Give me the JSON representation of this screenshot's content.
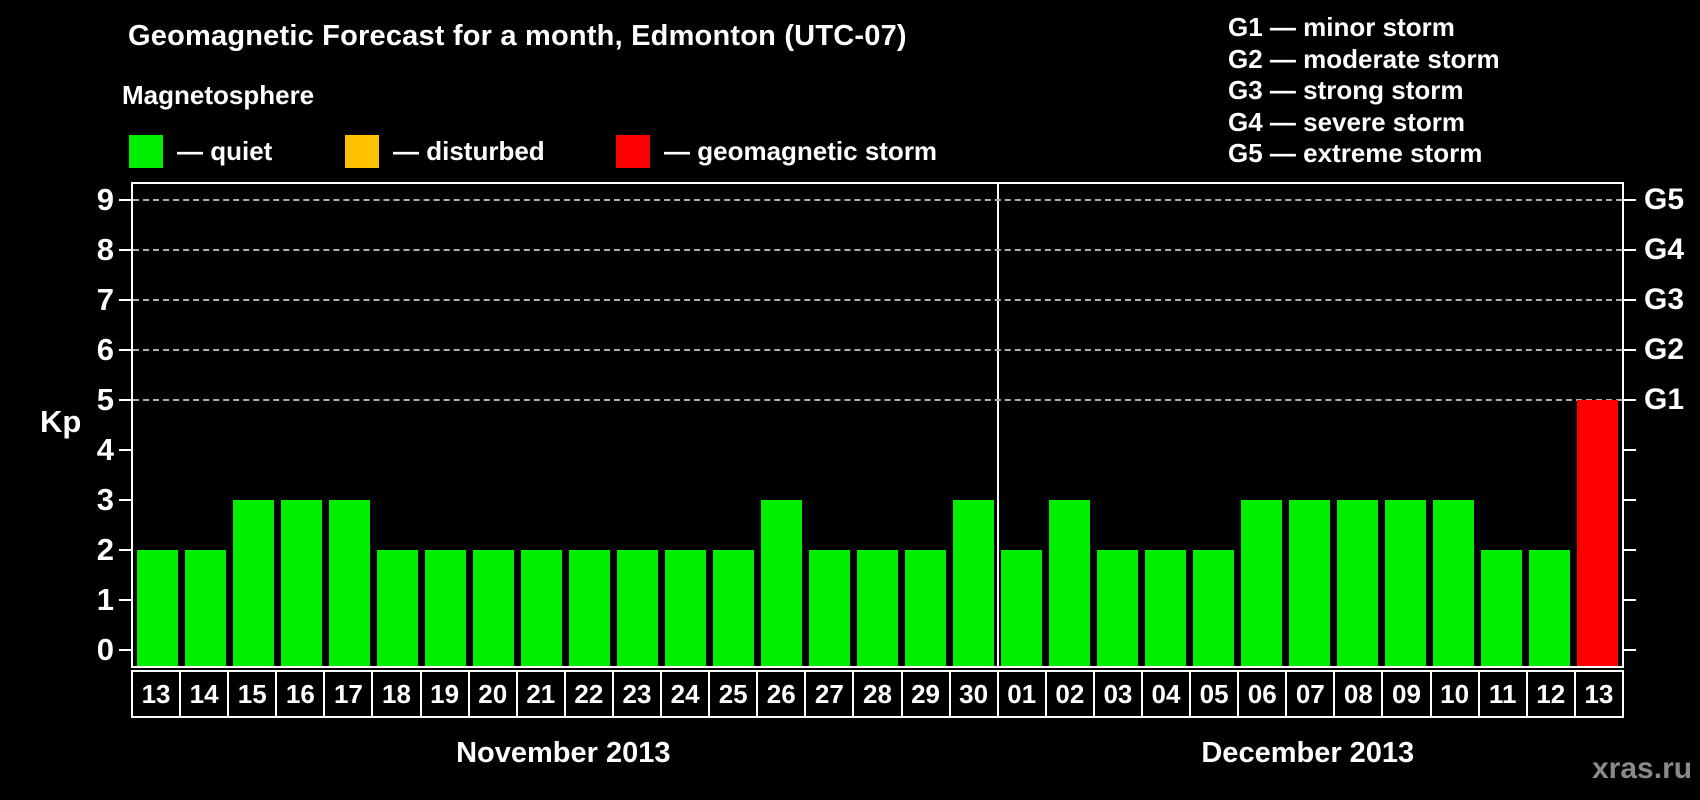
{
  "title": "Geomagnetic Forecast for a month, Edmonton (UTC-07)",
  "subtitle": "Magnetosphere",
  "legend": [
    {
      "name": "quiet",
      "label": "— quiet",
      "color": "#00ee00"
    },
    {
      "name": "disturbed",
      "label": "— disturbed",
      "color": "#ffc000"
    },
    {
      "name": "storm",
      "label": "— geomagnetic storm",
      "color": "#ff0000"
    }
  ],
  "g_legend": [
    "G1 — minor storm",
    "G2 — moderate storm",
    "G3 — strong storm",
    "G4 — severe storm",
    "G5 — extreme storm"
  ],
  "watermark": "xras.ru",
  "chart_data": {
    "type": "bar",
    "title": "Geomagnetic Forecast for a month, Edmonton (UTC-07)",
    "ylabel": "Kp",
    "ylim": [
      0,
      9
    ],
    "yticks": [
      0,
      1,
      2,
      3,
      4,
      5,
      6,
      7,
      8,
      9
    ],
    "grid": "dashed horizontal lines at Kp 5–9 only",
    "right_axis": [
      {
        "kp": 5,
        "label": "G1"
      },
      {
        "kp": 6,
        "label": "G2"
      },
      {
        "kp": 7,
        "label": "G3"
      },
      {
        "kp": 8,
        "label": "G4"
      },
      {
        "kp": 9,
        "label": "G5"
      }
    ],
    "months": [
      {
        "label": "November 2013",
        "days": [
          {
            "day": "13",
            "kp": 2,
            "status": "quiet"
          },
          {
            "day": "14",
            "kp": 2,
            "status": "quiet"
          },
          {
            "day": "15",
            "kp": 3,
            "status": "quiet"
          },
          {
            "day": "16",
            "kp": 3,
            "status": "quiet"
          },
          {
            "day": "17",
            "kp": 3,
            "status": "quiet"
          },
          {
            "day": "18",
            "kp": 2,
            "status": "quiet"
          },
          {
            "day": "19",
            "kp": 2,
            "status": "quiet"
          },
          {
            "day": "20",
            "kp": 2,
            "status": "quiet"
          },
          {
            "day": "21",
            "kp": 2,
            "status": "quiet"
          },
          {
            "day": "22",
            "kp": 2,
            "status": "quiet"
          },
          {
            "day": "23",
            "kp": 2,
            "status": "quiet"
          },
          {
            "day": "24",
            "kp": 2,
            "status": "quiet"
          },
          {
            "day": "25",
            "kp": 2,
            "status": "quiet"
          },
          {
            "day": "26",
            "kp": 3,
            "status": "quiet"
          },
          {
            "day": "27",
            "kp": 2,
            "status": "quiet"
          },
          {
            "day": "28",
            "kp": 2,
            "status": "quiet"
          },
          {
            "day": "29",
            "kp": 2,
            "status": "quiet"
          },
          {
            "day": "30",
            "kp": 3,
            "status": "quiet"
          }
        ]
      },
      {
        "label": "December 2013",
        "days": [
          {
            "day": "01",
            "kp": 2,
            "status": "quiet"
          },
          {
            "day": "02",
            "kp": 3,
            "status": "quiet"
          },
          {
            "day": "03",
            "kp": 2,
            "status": "quiet"
          },
          {
            "day": "04",
            "kp": 2,
            "status": "quiet"
          },
          {
            "day": "05",
            "kp": 2,
            "status": "quiet"
          },
          {
            "day": "06",
            "kp": 3,
            "status": "quiet"
          },
          {
            "day": "07",
            "kp": 3,
            "status": "quiet"
          },
          {
            "day": "08",
            "kp": 3,
            "status": "quiet"
          },
          {
            "day": "09",
            "kp": 3,
            "status": "quiet"
          },
          {
            "day": "10",
            "kp": 3,
            "status": "quiet"
          },
          {
            "day": "11",
            "kp": 2,
            "status": "quiet"
          },
          {
            "day": "12",
            "kp": 2,
            "status": "quiet"
          },
          {
            "day": "13",
            "kp": 5,
            "status": "storm"
          }
        ]
      }
    ]
  }
}
